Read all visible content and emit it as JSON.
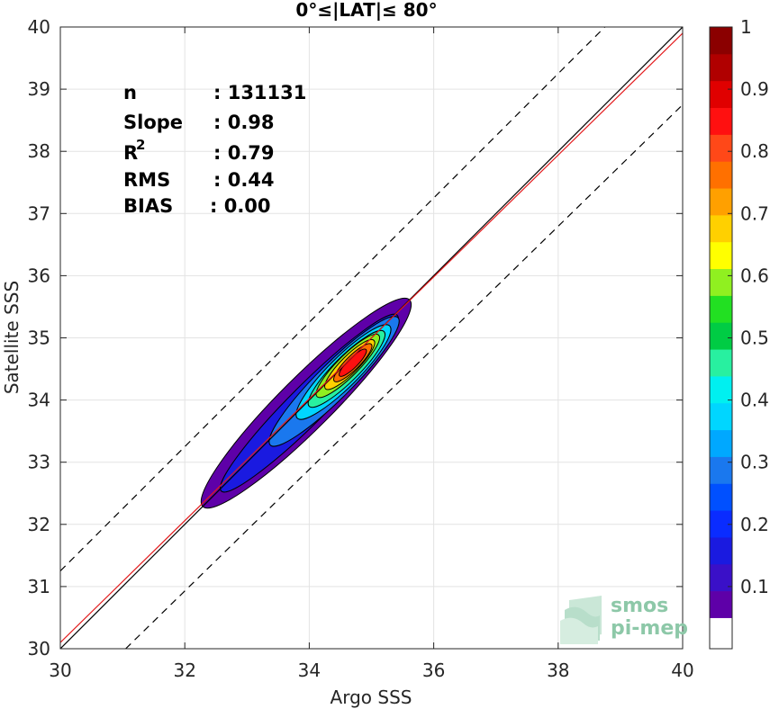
{
  "chart_data": {
    "type": "heatmap",
    "title": "0°≤|LAT|≤ 80°",
    "xlabel": "Argo SSS",
    "ylabel": "Satellite SSS",
    "xlim": [
      30,
      40
    ],
    "ylim": [
      30,
      40
    ],
    "xticks": [
      "30",
      "32",
      "34",
      "36",
      "38",
      "40"
    ],
    "yticks": [
      "30",
      "31",
      "32",
      "33",
      "34",
      "35",
      "36",
      "37",
      "38",
      "39",
      "40"
    ],
    "grid": true,
    "stats": [
      {
        "label": "n",
        "value": ": 131131"
      },
      {
        "label": "Slope",
        "value": ": 0.98"
      },
      {
        "label": "R",
        "sup": "2",
        "value": ": 0.79"
      },
      {
        "label": "RMS",
        "value": ": 0.44"
      },
      {
        "label": "BIAS",
        "value": ": 0.00"
      }
    ],
    "lines": [
      {
        "kind": "identity",
        "color": "#000000",
        "points": [
          [
            30,
            30
          ],
          [
            40,
            40
          ]
        ]
      },
      {
        "kind": "regression",
        "color": "#e31a1c",
        "slope": 0.98,
        "intercept": 0.7,
        "x_range": [
          30,
          40
        ]
      },
      {
        "kind": "upper-bound",
        "color": "#000000",
        "dash": true,
        "points": [
          [
            30,
            31.25
          ],
          [
            38.75,
            40
          ]
        ]
      },
      {
        "kind": "lower-bound",
        "color": "#000000",
        "dash": true,
        "points": [
          [
            31.05,
            30
          ],
          [
            40,
            38.75
          ]
        ]
      }
    ],
    "density_contours": {
      "levels": [
        0.05,
        0.15,
        0.25,
        0.35,
        0.45,
        0.55,
        0.65,
        0.75,
        0.85,
        0.95
      ],
      "peak": {
        "x": 34.7,
        "y": 34.6
      }
    },
    "colorbar": {
      "range": [
        0,
        1
      ],
      "ticks": [
        "0.1",
        "0.2",
        "0.3",
        "0.4",
        "0.5",
        "0.6",
        "0.7",
        "0.8",
        "0.9",
        "1"
      ],
      "colors": [
        "#ffffff",
        "#5e00a8",
        "#3a10c8",
        "#1a1ae0",
        "#0a2cff",
        "#0050ff",
        "#1a78ee",
        "#00a8ff",
        "#00d6ff",
        "#00f0f0",
        "#28f0a0",
        "#00cc44",
        "#22e022",
        "#90f020",
        "#ffff00",
        "#ffd000",
        "#ffa000",
        "#ff7000",
        "#ff4818",
        "#ff1010",
        "#e00000",
        "#b00000",
        "#8b0000"
      ]
    }
  },
  "logo": {
    "line1": "smos",
    "line2": "pi-mep"
  }
}
